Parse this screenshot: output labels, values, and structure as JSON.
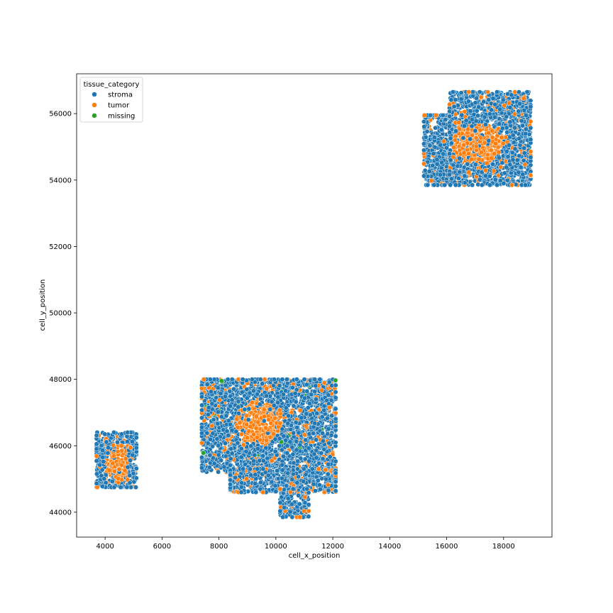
{
  "chart_data": {
    "type": "scatter",
    "title": "",
    "xlabel": "cell_x_position",
    "ylabel": "cell_y_position",
    "xlim": [
      3000,
      19700
    ],
    "ylim": [
      43250,
      57200
    ],
    "xticks": [
      4000,
      6000,
      8000,
      10000,
      12000,
      14000,
      16000,
      18000
    ],
    "yticks": [
      44000,
      46000,
      48000,
      50000,
      52000,
      54000,
      56000
    ],
    "grid": false,
    "legend": {
      "title": "tissue_category",
      "placement": "top-left",
      "entries": [
        "stroma",
        "tumor",
        "missing"
      ]
    },
    "series": [
      {
        "name": "stroma",
        "color": "#1f77b4"
      },
      {
        "name": "tumor",
        "color": "#ff7f0e"
      },
      {
        "name": "missing",
        "color": "#2ca02c"
      }
    ],
    "regions": [
      {
        "x": [
          3700,
          5100
        ],
        "y": [
          44750,
          46400
        ],
        "tumor_center": [
          4400,
          45500
        ],
        "tumor_radius": [
          400,
          600
        ]
      },
      {
        "x": [
          7400,
          12100
        ],
        "y": [
          45200,
          48000
        ],
        "tumor_center": [
          9400,
          46700
        ],
        "tumor_radius": [
          800,
          700
        ]
      },
      {
        "x": [
          8400,
          12100
        ],
        "y": [
          44600,
          45300
        ],
        "tumor_center": null,
        "tumor_radius": null
      },
      {
        "x": [
          10150,
          11150
        ],
        "y": [
          43850,
          44700
        ],
        "tumor_center": null,
        "tumor_radius": null
      },
      {
        "x": [
          15200,
          16100
        ],
        "y": [
          53850,
          55950
        ],
        "tumor_center": null,
        "tumor_radius": null
      },
      {
        "x": [
          16100,
          18950
        ],
        "y": [
          53850,
          56650
        ],
        "tumor_center": [
          17100,
          55100
        ],
        "tumor_radius": [
          900,
          600
        ]
      }
    ]
  }
}
